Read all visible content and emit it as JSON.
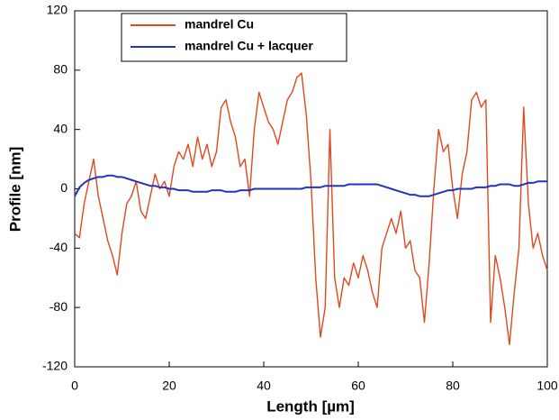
{
  "chart_data": {
    "type": "line",
    "xlabel": "Length [µm]",
    "ylabel": "Profile [nm]",
    "xlim": [
      0,
      100
    ],
    "xticks": [
      0,
      20,
      40,
      60,
      80,
      100
    ],
    "ylim": [
      -120,
      120
    ],
    "yticks": [
      -120,
      -80,
      -40,
      0,
      40,
      80,
      120
    ],
    "grid": false,
    "legend": "upper left",
    "x": [
      0,
      1,
      2,
      3,
      4,
      5,
      6,
      7,
      8,
      9,
      10,
      11,
      12,
      13,
      14,
      15,
      16,
      17,
      18,
      19,
      20,
      21,
      22,
      23,
      24,
      25,
      26,
      27,
      28,
      29,
      30,
      31,
      32,
      33,
      34,
      35,
      36,
      37,
      38,
      39,
      40,
      41,
      42,
      43,
      44,
      45,
      46,
      47,
      48,
      49,
      50,
      51,
      52,
      53,
      54,
      55,
      56,
      57,
      58,
      59,
      60,
      61,
      62,
      63,
      64,
      65,
      66,
      67,
      68,
      69,
      70,
      71,
      72,
      73,
      74,
      75,
      76,
      77,
      78,
      79,
      80,
      81,
      82,
      83,
      84,
      85,
      86,
      87,
      88,
      89,
      90,
      91,
      92,
      93,
      94,
      95,
      96,
      97,
      98,
      99,
      100
    ],
    "series": [
      {
        "name": "mandrel Cu",
        "color": "#e0481e",
        "values": [
          -30,
          -33,
          -10,
          5,
          20,
          -5,
          -20,
          -35,
          -45,
          -58,
          -30,
          -10,
          -5,
          5,
          -15,
          -20,
          -5,
          10,
          0,
          5,
          -5,
          15,
          25,
          20,
          30,
          15,
          35,
          20,
          30,
          15,
          25,
          55,
          60,
          45,
          35,
          15,
          20,
          -5,
          40,
          65,
          55,
          45,
          40,
          30,
          45,
          60,
          65,
          75,
          78,
          50,
          5,
          -60,
          -100,
          -80,
          40,
          -60,
          -80,
          -60,
          -65,
          -50,
          -60,
          -45,
          -55,
          -70,
          -80,
          -40,
          -30,
          -20,
          -30,
          -15,
          -40,
          -35,
          -55,
          -60,
          -90,
          -50,
          0,
          40,
          25,
          30,
          0,
          -20,
          10,
          25,
          60,
          65,
          55,
          60,
          -90,
          -45,
          -60,
          -80,
          -105,
          -70,
          -40,
          55,
          -10,
          -40,
          -30,
          -45,
          -55
        ]
      },
      {
        "name": "mandrel Cu + lacquer",
        "color": "#2233c0",
        "values": [
          -5,
          1,
          4,
          6,
          7,
          8,
          8,
          9,
          9,
          8,
          8,
          7,
          6,
          5,
          4,
          3,
          2,
          2,
          1,
          1,
          0,
          0,
          -1,
          -1,
          -1,
          -2,
          -2,
          -2,
          -2,
          -1,
          -1,
          -1,
          -2,
          -2,
          -2,
          -1,
          -1,
          -1,
          0,
          0,
          0,
          0,
          0,
          0,
          0,
          0,
          0,
          0,
          0,
          1,
          1,
          1,
          1,
          2,
          2,
          2,
          2,
          2,
          3,
          3,
          3,
          3,
          3,
          3,
          3,
          2,
          1,
          0,
          -1,
          -2,
          -3,
          -4,
          -4,
          -5,
          -5,
          -5,
          -4,
          -3,
          -2,
          -1,
          -1,
          0,
          0,
          0,
          0,
          1,
          1,
          1,
          2,
          2,
          3,
          3,
          3,
          2,
          2,
          3,
          4,
          4,
          5,
          5,
          5
        ]
      }
    ]
  }
}
